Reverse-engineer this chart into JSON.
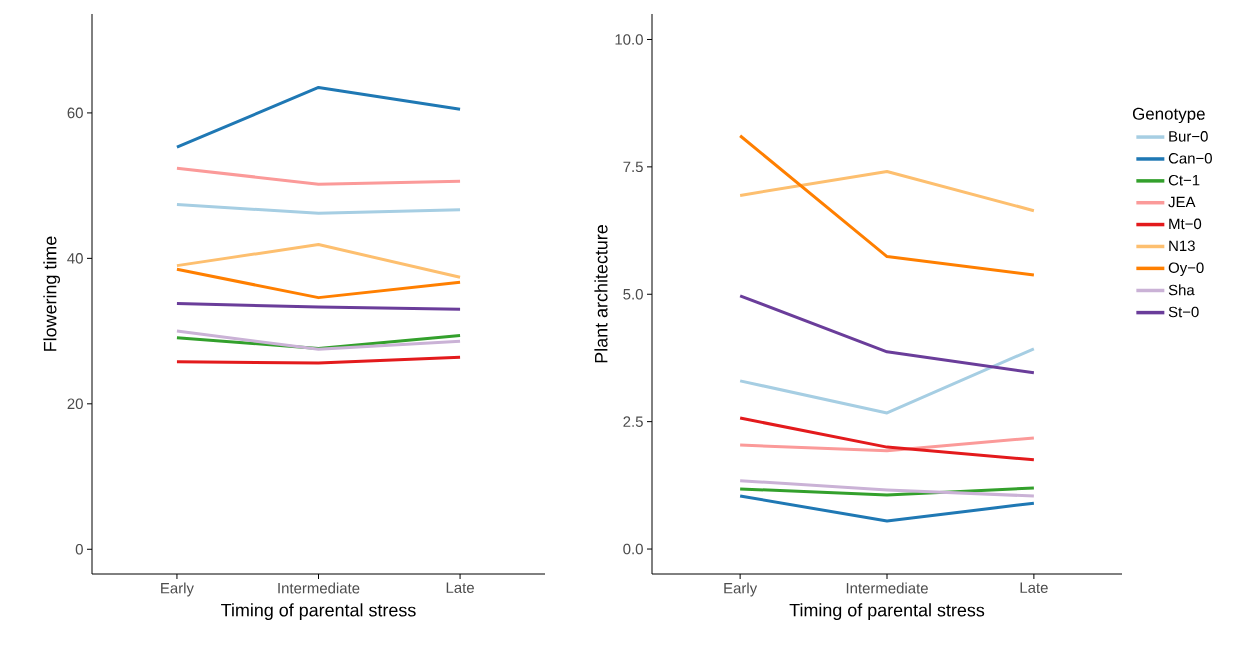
{
  "chart_data": [
    {
      "type": "line",
      "xlabel": "Timing of parental stress",
      "ylabel": "Flowering time",
      "categories": [
        "Early",
        "Intermediate",
        "Late"
      ],
      "ylim": [
        -3.4,
        73.6
      ],
      "yticks": [
        0,
        20,
        40,
        60
      ],
      "grid": false,
      "marker": "none",
      "series": [
        {
          "color": "#a6cee3",
          "values": [
            47.4,
            46.2,
            46.7
          ]
        },
        {
          "color": "#1f78b4",
          "values": [
            55.3,
            63.5,
            60.5
          ]
        },
        {
          "color": "#33a02c",
          "values": [
            29.1,
            27.6,
            29.4
          ]
        },
        {
          "color": "#fb9a99",
          "values": [
            52.4,
            50.2,
            50.6
          ]
        },
        {
          "color": "#e31a1c",
          "values": [
            25.8,
            25.6,
            26.4
          ]
        },
        {
          "color": "#fdbf6f",
          "values": [
            39.0,
            41.9,
            37.4
          ]
        },
        {
          "color": "#ff7f00",
          "values": [
            38.5,
            34.6,
            36.7
          ]
        },
        {
          "color": "#cab2d6",
          "values": [
            30.0,
            27.5,
            28.6
          ]
        },
        {
          "color": "#6a3d9a",
          "values": [
            33.8,
            33.3,
            33.0
          ]
        }
      ]
    },
    {
      "type": "line",
      "xlabel": "Timing of parental stress",
      "ylabel": "Plant architecture",
      "legend_title": "Genotype",
      "legend": "right",
      "categories": [
        "Early",
        "Intermediate",
        "Late"
      ],
      "ylim": [
        -0.49,
        10.5
      ],
      "yticks": [
        {
          "value": 0,
          "label": "0.0"
        },
        {
          "value": 2.5,
          "label": "2.5"
        },
        {
          "value": 5,
          "label": "5.0"
        },
        {
          "value": 7.5,
          "label": "7.5"
        },
        {
          "value": 10,
          "label": "10.0"
        }
      ],
      "grid": false,
      "marker": "none",
      "series": [
        {
          "name": "Bur−0",
          "color": "#a6cee3",
          "values": [
            3.3,
            2.67,
            3.93
          ]
        },
        {
          "name": "Can−0",
          "color": "#1f78b4",
          "values": [
            1.04,
            0.55,
            0.9
          ]
        },
        {
          "name": "Ct−1",
          "color": "#33a02c",
          "values": [
            1.18,
            1.06,
            1.2
          ]
        },
        {
          "name": "JEA",
          "color": "#fb9a99",
          "values": [
            2.04,
            1.93,
            2.18
          ]
        },
        {
          "name": "Mt−0",
          "color": "#e31a1c",
          "values": [
            2.57,
            2.0,
            1.75
          ]
        },
        {
          "name": "N13",
          "color": "#fdbf6f",
          "values": [
            6.94,
            7.41,
            6.64
          ]
        },
        {
          "name": "Oy−0",
          "color": "#ff7f00",
          "values": [
            8.11,
            5.74,
            5.38
          ]
        },
        {
          "name": "Sha",
          "color": "#cab2d6",
          "values": [
            1.34,
            1.16,
            1.04
          ]
        },
        {
          "name": "St−0",
          "color": "#6a3d9a",
          "values": [
            4.97,
            3.87,
            3.46
          ]
        }
      ]
    }
  ]
}
